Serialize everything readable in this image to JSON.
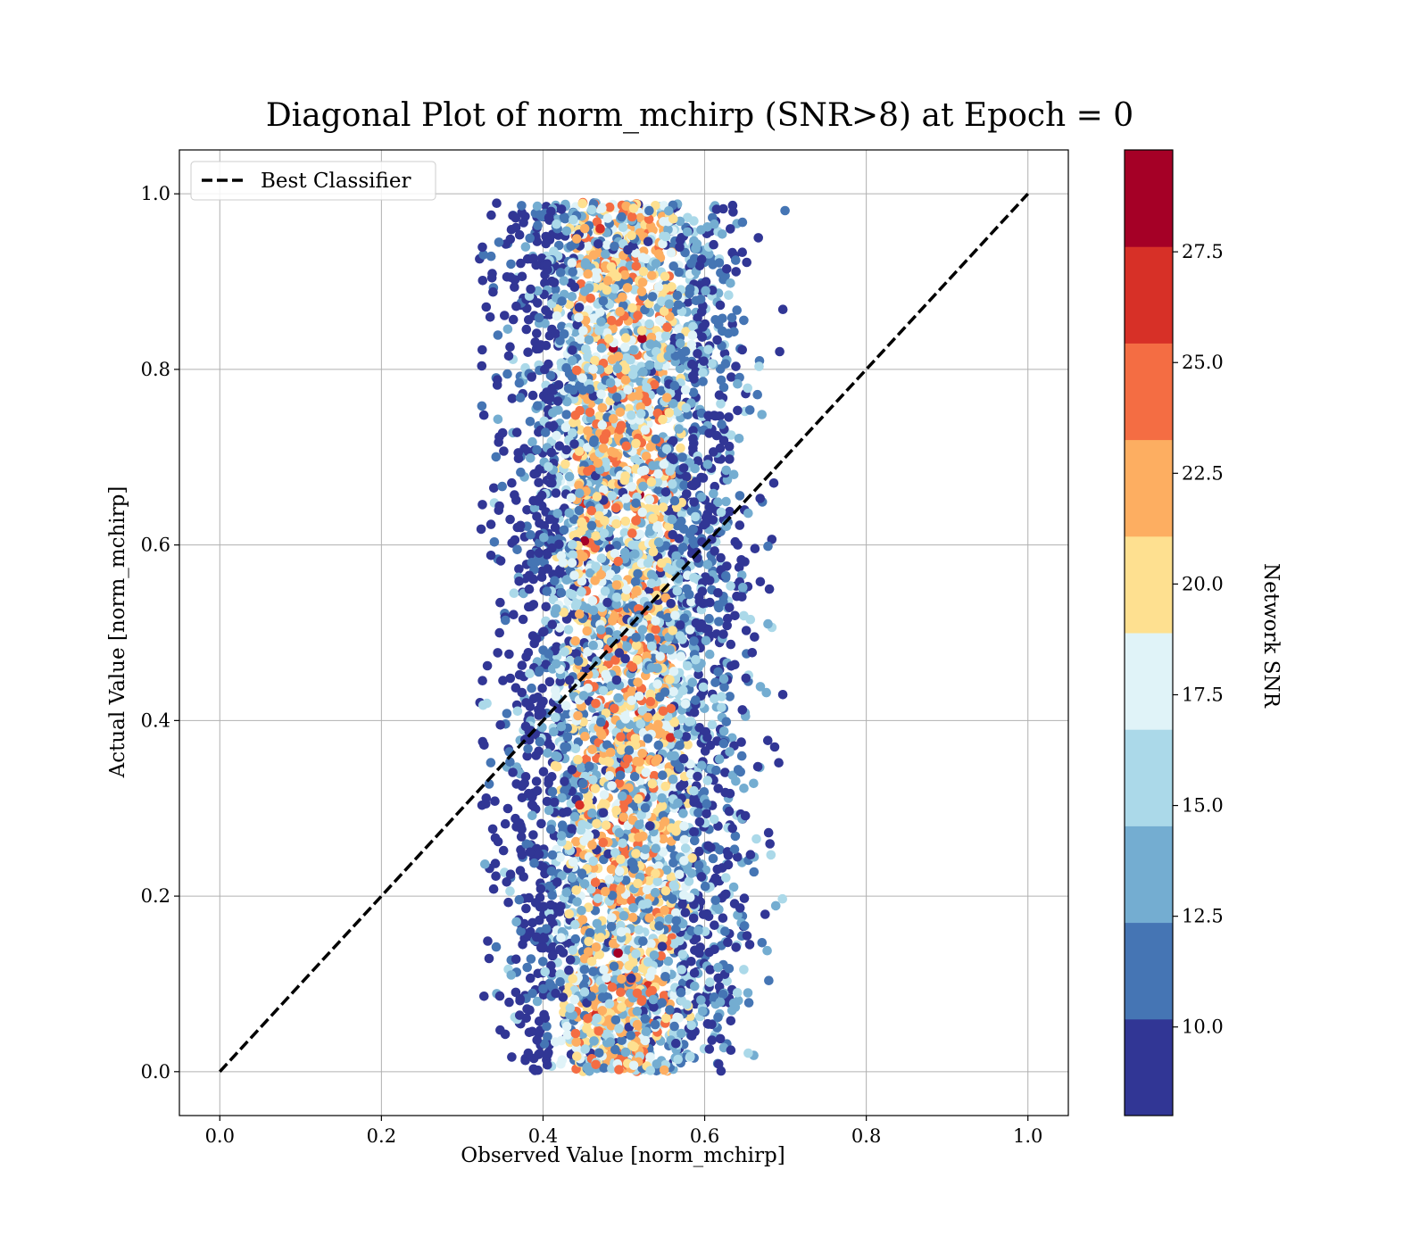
{
  "chart_data": {
    "type": "scatter",
    "title": "Diagonal Plot of norm_mchirp (SNR>8) at Epoch = 0",
    "xlabel": "Observed Value [norm_mchirp]",
    "ylabel": "Actual Value [norm_mchirp]",
    "xlim": [
      -0.05,
      1.05
    ],
    "ylim": [
      -0.05,
      1.05
    ],
    "x_ticks": [
      "0.0",
      "0.2",
      "0.4",
      "0.6",
      "0.8",
      "1.0"
    ],
    "y_ticks": [
      "0.0",
      "0.2",
      "0.4",
      "0.6",
      "0.8",
      "1.0"
    ],
    "x_tick_values": [
      0.0,
      0.2,
      0.4,
      0.6,
      0.8,
      1.0
    ],
    "y_tick_values": [
      0.0,
      0.2,
      0.4,
      0.6,
      0.8,
      1.0
    ],
    "grid": true,
    "legend": {
      "position": "top-left",
      "entries": [
        {
          "label": "Best Classifier",
          "style": "dashed",
          "color": "#000000"
        }
      ]
    },
    "reference_line": {
      "name": "Best Classifier",
      "x": [
        0.0,
        1.0
      ],
      "y": [
        0.0,
        1.0
      ]
    },
    "scatter_summary": {
      "x_center": 0.5,
      "x_range": [
        0.32,
        0.71
      ],
      "y_range": [
        0.0,
        0.99
      ],
      "snr_range": [
        8.0,
        30.0
      ]
    },
    "colorbar": {
      "label": "Network SNR",
      "range": [
        8.0,
        29.8
      ],
      "tick_values": [
        10.0,
        12.5,
        15.0,
        17.5,
        20.0,
        22.5,
        25.0,
        27.5
      ],
      "tick_labels": [
        "10.0",
        "12.5",
        "15.0",
        "17.5",
        "20.0",
        "22.5",
        "25.0",
        "27.5"
      ],
      "colors": [
        "#313695",
        "#4575b4",
        "#74add1",
        "#abd9e9",
        "#e0f3f8",
        "#fee090",
        "#fdae61",
        "#f46d43",
        "#d73027",
        "#a50026"
      ],
      "levels": [
        8.0,
        10.18,
        12.36,
        14.54,
        16.72,
        18.9,
        21.08,
        23.26,
        25.44,
        27.62,
        29.8
      ]
    }
  }
}
